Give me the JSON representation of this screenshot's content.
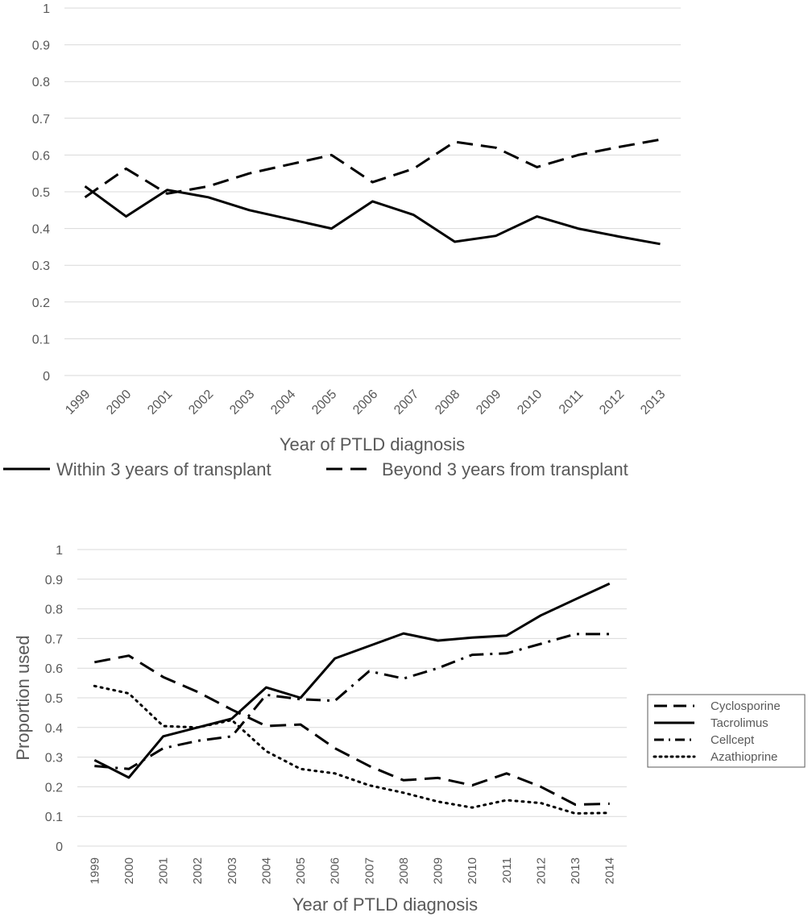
{
  "chart_data": [
    {
      "type": "line",
      "title": "",
      "xlabel": "Year of PTLD diagnosis",
      "ylabel": "",
      "ylim": [
        0,
        1
      ],
      "yticks": [
        "0",
        "0.1",
        "0.2",
        "0.3",
        "0.4",
        "0.5",
        "0.6",
        "0.7",
        "0.8",
        "0.9",
        "1"
      ],
      "categories": [
        "1999",
        "2000",
        "2001",
        "2002",
        "2003",
        "2004",
        "2005",
        "2006",
        "2007",
        "2008",
        "2009",
        "2010",
        "2011",
        "2012",
        "2013"
      ],
      "grid": true,
      "legend_position": "bottom",
      "series": [
        {
          "name": "Within 3 years of transplant",
          "style": "solid",
          "values": [
            0.515,
            0.433,
            0.505,
            0.485,
            0.45,
            0.425,
            0.4,
            0.474,
            0.437,
            0.364,
            0.38,
            0.433,
            0.4,
            0.378,
            0.358
          ]
        },
        {
          "name": "Beyond 3 years from transplant",
          "style": "dashed",
          "values": [
            0.485,
            0.563,
            0.495,
            0.515,
            0.55,
            0.575,
            0.6,
            0.526,
            0.563,
            0.636,
            0.62,
            0.567,
            0.6,
            0.622,
            0.642
          ]
        }
      ]
    },
    {
      "type": "line",
      "title": "",
      "xlabel": "Year of PTLD diagnosis",
      "ylabel": "Proportion used",
      "ylim": [
        0,
        1
      ],
      "yticks": [
        "0",
        "0.1",
        "0.2",
        "0.3",
        "0.4",
        "0.5",
        "0.6",
        "0.7",
        "0.8",
        "0.9",
        "1"
      ],
      "categories": [
        "1999",
        "2000",
        "2001",
        "2002",
        "2003",
        "2004",
        "2005",
        "2006",
        "2007",
        "2008",
        "2009",
        "2010",
        "2011",
        "2012",
        "2013",
        "2014"
      ],
      "grid": true,
      "legend_position": "right",
      "series": [
        {
          "name": "Cyclosporine",
          "style": "dashed",
          "values": [
            0.62,
            0.642,
            0.57,
            0.52,
            0.46,
            0.405,
            0.41,
            0.33,
            0.27,
            0.222,
            0.23,
            0.205,
            0.245,
            0.2,
            0.14,
            0.143
          ]
        },
        {
          "name": "Tacrolimus",
          "style": "solid",
          "values": [
            0.29,
            0.231,
            0.37,
            0.4,
            0.43,
            0.535,
            0.5,
            0.633,
            0.675,
            0.717,
            0.693,
            0.703,
            0.71,
            0.778,
            0.832,
            0.885
          ]
        },
        {
          "name": "Cellcept",
          "style": "dashdot",
          "values": [
            0.27,
            0.26,
            0.33,
            0.355,
            0.37,
            0.51,
            0.495,
            0.49,
            0.59,
            0.565,
            0.6,
            0.645,
            0.65,
            0.682,
            0.715,
            0.715
          ]
        },
        {
          "name": "Azathioprine",
          "style": "dotted",
          "values": [
            0.54,
            0.515,
            0.405,
            0.4,
            0.425,
            0.32,
            0.26,
            0.245,
            0.205,
            0.18,
            0.15,
            0.13,
            0.155,
            0.145,
            0.11,
            0.112
          ]
        }
      ]
    }
  ]
}
